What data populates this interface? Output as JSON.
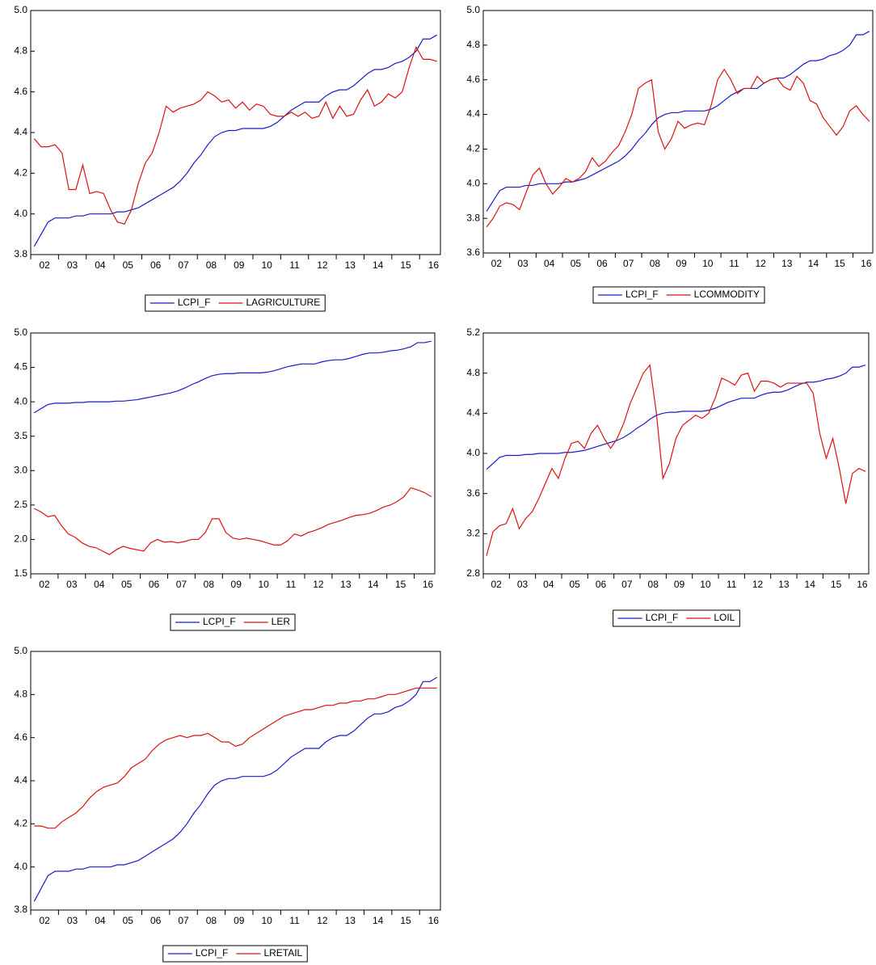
{
  "chart_data": [
    {
      "type": "line",
      "categories": [
        "02",
        null,
        null,
        null,
        "03",
        null,
        null,
        null,
        "04",
        null,
        null,
        null,
        "05",
        null,
        null,
        null,
        "06",
        null,
        null,
        null,
        "07",
        null,
        null,
        null,
        "08",
        null,
        null,
        null,
        "09",
        null,
        null,
        null,
        "10",
        null,
        null,
        null,
        "11",
        null,
        null,
        null,
        "12",
        null,
        null,
        null,
        "13",
        null,
        null,
        null,
        "14",
        null,
        null,
        null,
        "15",
        null,
        null,
        null,
        "16",
        null,
        null
      ],
      "ylim": [
        3.8,
        5.0
      ],
      "yticks": [
        3.8,
        {
          "value": 4.0,
          "label": "4.0"
        },
        4.2,
        4.4,
        4.6,
        4.8,
        {
          "value": 5.0,
          "label": "5.0"
        }
      ],
      "series": [
        {
          "name": "LCPI_F",
          "color": "#1a1acc",
          "values": [
            3.84,
            3.9,
            3.96,
            3.98,
            3.98,
            3.98,
            3.99,
            3.99,
            4.0,
            4.0,
            4.0,
            4.0,
            4.01,
            4.01,
            4.02,
            4.03,
            4.05,
            4.07,
            4.09,
            4.11,
            4.13,
            4.16,
            4.2,
            4.25,
            4.29,
            4.34,
            4.38,
            4.4,
            4.41,
            4.41,
            4.42,
            4.42,
            4.42,
            4.42,
            4.43,
            4.45,
            4.48,
            4.51,
            4.53,
            4.55,
            4.55,
            4.55,
            4.58,
            4.6,
            4.61,
            4.61,
            4.63,
            4.66,
            4.69,
            4.71,
            4.71,
            4.72,
            4.74,
            4.75,
            4.77,
            4.8,
            4.86,
            4.86,
            4.88
          ]
        },
        {
          "name": "LAGRICULTURE",
          "color": "#dd1111",
          "values": [
            4.37,
            4.33,
            4.33,
            4.34,
            4.3,
            4.12,
            4.12,
            4.24,
            4.1,
            4.11,
            4.1,
            4.02,
            3.96,
            3.95,
            4.02,
            4.15,
            4.25,
            4.3,
            4.4,
            4.53,
            4.5,
            4.52,
            4.53,
            4.54,
            4.56,
            4.6,
            4.58,
            4.55,
            4.56,
            4.52,
            4.55,
            4.51,
            4.54,
            4.53,
            4.49,
            4.48,
            4.48,
            4.5,
            4.48,
            4.5,
            4.47,
            4.48,
            4.55,
            4.47,
            4.53,
            4.48,
            4.49,
            4.56,
            4.61,
            4.53,
            4.55,
            4.59,
            4.57,
            4.6,
            4.72,
            4.82,
            4.76,
            4.76,
            4.75
          ]
        }
      ]
    },
    {
      "type": "line",
      "categories": [
        "02",
        null,
        null,
        null,
        "03",
        null,
        null,
        null,
        "04",
        null,
        null,
        null,
        "05",
        null,
        null,
        null,
        "06",
        null,
        null,
        null,
        "07",
        null,
        null,
        null,
        "08",
        null,
        null,
        null,
        "09",
        null,
        null,
        null,
        "10",
        null,
        null,
        null,
        "11",
        null,
        null,
        null,
        "12",
        null,
        null,
        null,
        "13",
        null,
        null,
        null,
        "14",
        null,
        null,
        null,
        "15",
        null,
        null,
        null,
        "16",
        null,
        null
      ],
      "ylim": [
        3.6,
        5.0
      ],
      "yticks": [
        3.6,
        3.8,
        {
          "value": 4.0,
          "label": "4.0"
        },
        4.2,
        4.4,
        4.6,
        4.8,
        {
          "value": 5.0,
          "label": "5.0"
        }
      ],
      "series": [
        {
          "name": "LCPI_F",
          "color": "#1a1acc",
          "values": [
            3.84,
            3.9,
            3.96,
            3.98,
            3.98,
            3.98,
            3.99,
            3.99,
            4.0,
            4.0,
            4.0,
            4.0,
            4.01,
            4.01,
            4.02,
            4.03,
            4.05,
            4.07,
            4.09,
            4.11,
            4.13,
            4.16,
            4.2,
            4.25,
            4.29,
            4.34,
            4.38,
            4.4,
            4.41,
            4.41,
            4.42,
            4.42,
            4.42,
            4.42,
            4.43,
            4.45,
            4.48,
            4.51,
            4.53,
            4.55,
            4.55,
            4.55,
            4.58,
            4.6,
            4.61,
            4.61,
            4.63,
            4.66,
            4.69,
            4.71,
            4.71,
            4.72,
            4.74,
            4.75,
            4.77,
            4.8,
            4.86,
            4.86,
            4.88
          ]
        },
        {
          "name": "LCOMMODITY",
          "color": "#dd1111",
          "values": [
            3.75,
            3.8,
            3.87,
            3.89,
            3.88,
            3.85,
            3.95,
            4.05,
            4.09,
            4.0,
            3.94,
            3.98,
            4.03,
            4.01,
            4.03,
            4.07,
            4.15,
            4.1,
            4.13,
            4.18,
            4.22,
            4.3,
            4.4,
            4.55,
            4.58,
            4.6,
            4.3,
            4.2,
            4.26,
            4.36,
            4.32,
            4.34,
            4.35,
            4.34,
            4.45,
            4.6,
            4.66,
            4.6,
            4.52,
            4.55,
            4.55,
            4.62,
            4.58,
            4.6,
            4.61,
            4.56,
            4.54,
            4.62,
            4.58,
            4.48,
            4.46,
            4.38,
            4.33,
            4.28,
            4.33,
            4.42,
            4.45,
            4.4,
            4.36
          ]
        }
      ]
    },
    {
      "type": "line",
      "categories": [
        "02",
        null,
        null,
        null,
        "03",
        null,
        null,
        null,
        "04",
        null,
        null,
        null,
        "05",
        null,
        null,
        null,
        "06",
        null,
        null,
        null,
        "07",
        null,
        null,
        null,
        "08",
        null,
        null,
        null,
        "09",
        null,
        null,
        null,
        "10",
        null,
        null,
        null,
        "11",
        null,
        null,
        null,
        "12",
        null,
        null,
        null,
        "13",
        null,
        null,
        null,
        "14",
        null,
        null,
        null,
        "15",
        null,
        null,
        null,
        "16",
        null,
        null
      ],
      "ylim": [
        1.5,
        5.0
      ],
      "yticks": [
        1.5,
        {
          "value": 2.0,
          "label": "2.0"
        },
        2.5,
        {
          "value": 3.0,
          "label": "3.0"
        },
        3.5,
        {
          "value": 4.0,
          "label": "4.0"
        },
        4.5,
        {
          "value": 5.0,
          "label": "5.0"
        }
      ],
      "series": [
        {
          "name": "LCPI_F",
          "color": "#1a1acc",
          "values": [
            3.84,
            3.9,
            3.96,
            3.98,
            3.98,
            3.98,
            3.99,
            3.99,
            4.0,
            4.0,
            4.0,
            4.0,
            4.01,
            4.01,
            4.02,
            4.03,
            4.05,
            4.07,
            4.09,
            4.11,
            4.13,
            4.16,
            4.2,
            4.25,
            4.29,
            4.34,
            4.38,
            4.4,
            4.41,
            4.41,
            4.42,
            4.42,
            4.42,
            4.42,
            4.43,
            4.45,
            4.48,
            4.51,
            4.53,
            4.55,
            4.55,
            4.55,
            4.58,
            4.6,
            4.61,
            4.61,
            4.63,
            4.66,
            4.69,
            4.71,
            4.71,
            4.72,
            4.74,
            4.75,
            4.77,
            4.8,
            4.86,
            4.86,
            4.88
          ]
        },
        {
          "name": "LER",
          "color": "#dd1111",
          "values": [
            2.45,
            2.4,
            2.33,
            2.35,
            2.2,
            2.08,
            2.03,
            1.95,
            1.9,
            1.88,
            1.83,
            1.78,
            1.85,
            1.9,
            1.87,
            1.85,
            1.83,
            1.95,
            2.0,
            1.96,
            1.97,
            1.95,
            1.97,
            2.0,
            2.0,
            2.1,
            2.3,
            2.3,
            2.1,
            2.02,
            2.0,
            2.02,
            2.0,
            1.98,
            1.95,
            1.92,
            1.92,
            1.98,
            2.08,
            2.05,
            2.1,
            2.13,
            2.17,
            2.22,
            2.25,
            2.28,
            2.32,
            2.35,
            2.36,
            2.38,
            2.42,
            2.47,
            2.5,
            2.55,
            2.62,
            2.75,
            2.72,
            2.68,
            2.62
          ]
        }
      ]
    },
    {
      "type": "line",
      "categories": [
        "02",
        null,
        null,
        null,
        "03",
        null,
        null,
        null,
        "04",
        null,
        null,
        null,
        "05",
        null,
        null,
        null,
        "06",
        null,
        null,
        null,
        "07",
        null,
        null,
        null,
        "08",
        null,
        null,
        null,
        "09",
        null,
        null,
        null,
        "10",
        null,
        null,
        null,
        "11",
        null,
        null,
        null,
        "12",
        null,
        null,
        null,
        "13",
        null,
        null,
        null,
        "14",
        null,
        null,
        null,
        "15",
        null,
        null,
        null,
        "16",
        null,
        null
      ],
      "ylim": [
        2.8,
        5.2
      ],
      "yticks": [
        2.8,
        3.2,
        3.6,
        {
          "value": 4.0,
          "label": "4.0"
        },
        4.4,
        4.8,
        5.2
      ],
      "series": [
        {
          "name": "LCPI_F",
          "color": "#1a1acc",
          "values": [
            3.84,
            3.9,
            3.96,
            3.98,
            3.98,
            3.98,
            3.99,
            3.99,
            4.0,
            4.0,
            4.0,
            4.0,
            4.01,
            4.01,
            4.02,
            4.03,
            4.05,
            4.07,
            4.09,
            4.11,
            4.13,
            4.16,
            4.2,
            4.25,
            4.29,
            4.34,
            4.38,
            4.4,
            4.41,
            4.41,
            4.42,
            4.42,
            4.42,
            4.42,
            4.43,
            4.45,
            4.48,
            4.51,
            4.53,
            4.55,
            4.55,
            4.55,
            4.58,
            4.6,
            4.61,
            4.61,
            4.63,
            4.66,
            4.69,
            4.71,
            4.71,
            4.72,
            4.74,
            4.75,
            4.77,
            4.8,
            4.86,
            4.86,
            4.88
          ]
        },
        {
          "name": "LOIL",
          "color": "#dd1111",
          "values": [
            2.98,
            3.22,
            3.28,
            3.3,
            3.45,
            3.25,
            3.35,
            3.42,
            3.55,
            3.7,
            3.85,
            3.75,
            3.95,
            4.1,
            4.12,
            4.05,
            4.2,
            4.28,
            4.15,
            4.05,
            4.15,
            4.3,
            4.5,
            4.65,
            4.8,
            4.88,
            4.4,
            3.75,
            3.9,
            4.15,
            4.28,
            4.33,
            4.38,
            4.35,
            4.4,
            4.55,
            4.75,
            4.72,
            4.68,
            4.78,
            4.8,
            4.62,
            4.72,
            4.72,
            4.7,
            4.66,
            4.7,
            4.7,
            4.7,
            4.7,
            4.6,
            4.2,
            3.95,
            4.15,
            3.85,
            3.5,
            3.8,
            3.85,
            3.82
          ]
        }
      ]
    },
    {
      "type": "line",
      "categories": [
        "02",
        null,
        null,
        null,
        "03",
        null,
        null,
        null,
        "04",
        null,
        null,
        null,
        "05",
        null,
        null,
        null,
        "06",
        null,
        null,
        null,
        "07",
        null,
        null,
        null,
        "08",
        null,
        null,
        null,
        "09",
        null,
        null,
        null,
        "10",
        null,
        null,
        null,
        "11",
        null,
        null,
        null,
        "12",
        null,
        null,
        null,
        "13",
        null,
        null,
        null,
        "14",
        null,
        null,
        null,
        "15",
        null,
        null,
        null,
        "16",
        null,
        null
      ],
      "ylim": [
        3.8,
        5.0
      ],
      "yticks": [
        3.8,
        {
          "value": 4.0,
          "label": "4.0"
        },
        4.2,
        4.4,
        4.6,
        4.8,
        {
          "value": 5.0,
          "label": "5.0"
        }
      ],
      "series": [
        {
          "name": "LCPI_F",
          "color": "#1a1acc",
          "values": [
            3.84,
            3.9,
            3.96,
            3.98,
            3.98,
            3.98,
            3.99,
            3.99,
            4.0,
            4.0,
            4.0,
            4.0,
            4.01,
            4.01,
            4.02,
            4.03,
            4.05,
            4.07,
            4.09,
            4.11,
            4.13,
            4.16,
            4.2,
            4.25,
            4.29,
            4.34,
            4.38,
            4.4,
            4.41,
            4.41,
            4.42,
            4.42,
            4.42,
            4.42,
            4.43,
            4.45,
            4.48,
            4.51,
            4.53,
            4.55,
            4.55,
            4.55,
            4.58,
            4.6,
            4.61,
            4.61,
            4.63,
            4.66,
            4.69,
            4.71,
            4.71,
            4.72,
            4.74,
            4.75,
            4.77,
            4.8,
            4.86,
            4.86,
            4.88
          ]
        },
        {
          "name": "LRETAIL",
          "color": "#dd1111",
          "values": [
            4.19,
            4.19,
            4.18,
            4.18,
            4.21,
            4.23,
            4.25,
            4.28,
            4.32,
            4.35,
            4.37,
            4.38,
            4.39,
            4.42,
            4.46,
            4.48,
            4.5,
            4.54,
            4.57,
            4.59,
            4.6,
            4.61,
            4.6,
            4.61,
            4.61,
            4.62,
            4.6,
            4.58,
            4.58,
            4.56,
            4.57,
            4.6,
            4.62,
            4.64,
            4.66,
            4.68,
            4.7,
            4.71,
            4.72,
            4.73,
            4.73,
            4.74,
            4.75,
            4.75,
            4.76,
            4.76,
            4.77,
            4.77,
            4.78,
            4.78,
            4.79,
            4.8,
            4.8,
            4.81,
            4.82,
            4.83,
            4.83,
            4.83,
            4.83
          ]
        }
      ]
    }
  ]
}
